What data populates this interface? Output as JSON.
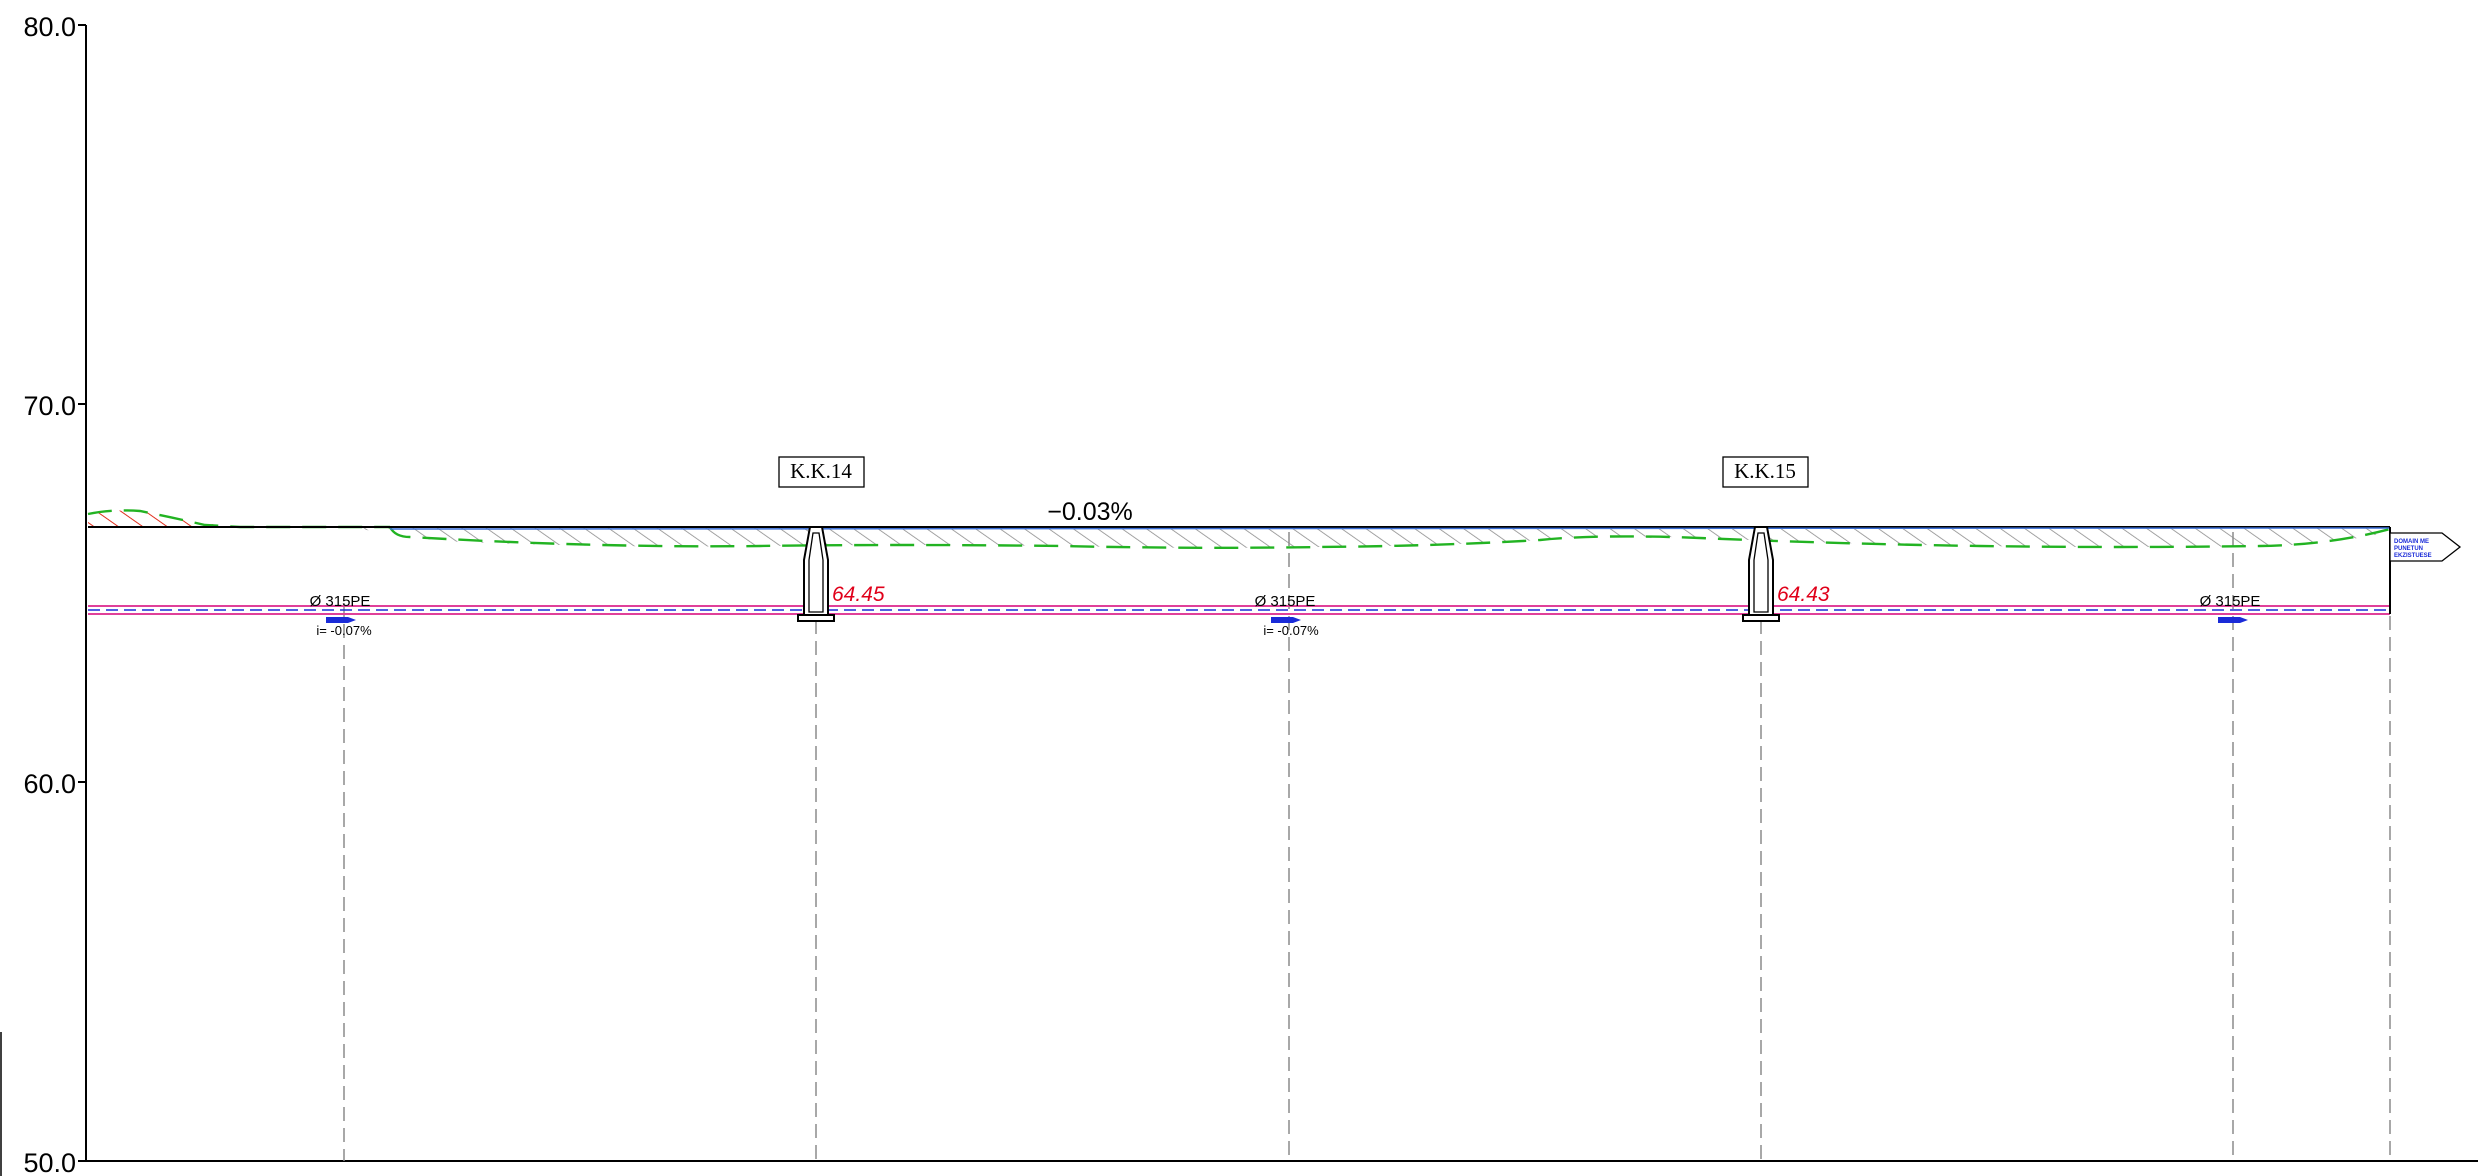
{
  "axis": {
    "ticks": [
      "80.0",
      "70.0",
      "60.0",
      "50.0"
    ]
  },
  "manholes": [
    {
      "label": "K.K.14",
      "elevation": "64.45"
    },
    {
      "label": "K.K.15",
      "elevation": "64.43"
    }
  ],
  "grade_label": "−0.03%",
  "pipes": [
    {
      "label": "Ø 315PE",
      "slope": "i= -0.07%"
    },
    {
      "label": "Ø 315PE",
      "slope": "i= -0.07%"
    },
    {
      "label": "Ø 315PE",
      "slope": ""
    }
  ],
  "outfall_note": [
    "DOMAIN ME",
    "PUNETUN",
    "EKZISTUESE"
  ],
  "colors": {
    "ground_hatch": "#22b322",
    "fill_hatch": "#e0301e",
    "pipe_pink": "#e0409a",
    "pipe_blue": "#1a2bd8",
    "surface_blue": "#3a6fd8",
    "elevation_red": "#e0001a"
  }
}
